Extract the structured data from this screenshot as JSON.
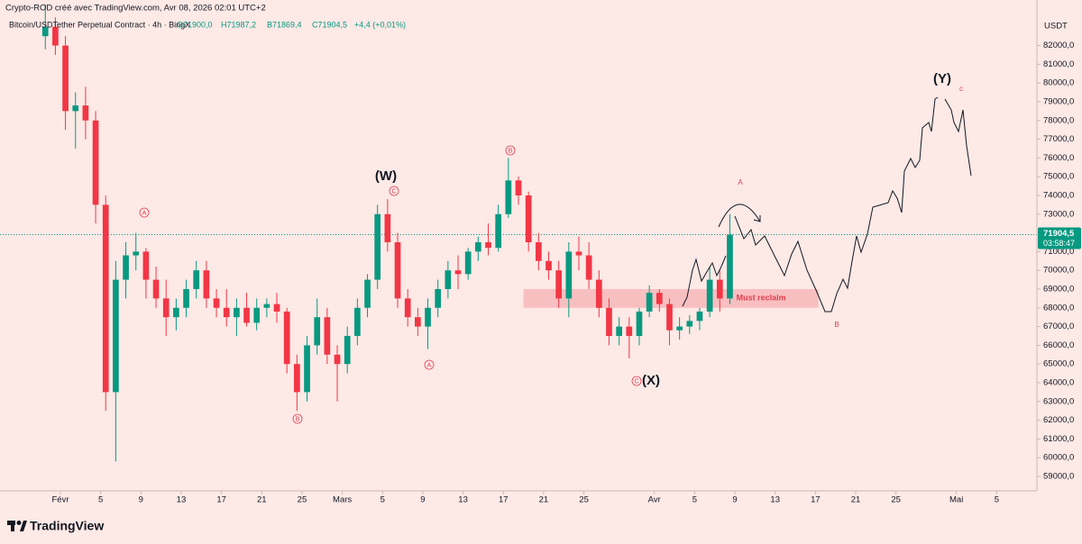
{
  "header": {
    "attribution": "Crypto-ROD créé avec TradingView.com, Avr 08, 2026 02:01 UTC+2",
    "symbol": "Bitcoin/USDTether Perpetual Contract · 4h · BingX",
    "ohlc": [
      "O71900,0",
      "H71987,2",
      "B71869,4",
      "C71904,5",
      "+4,4 (+0,01%)"
    ]
  },
  "footer": {
    "brand": "TradingView"
  },
  "chart_data": {
    "type": "candlestick",
    "currency": "USDT",
    "x": [
      "2026-01-30",
      "2026-01-31",
      "2026-02-01",
      "2026-02-02",
      "2026-02-03",
      "2026-02-04",
      "2026-02-05",
      "2026-02-06",
      "2026-02-07",
      "2026-02-08",
      "2026-02-09",
      "2026-02-10",
      "2026-02-11",
      "2026-02-12",
      "2026-02-13",
      "2026-02-14",
      "2026-02-15",
      "2026-02-16",
      "2026-02-17",
      "2026-02-18",
      "2026-02-19",
      "2026-02-20",
      "2026-02-21",
      "2026-02-22",
      "2026-02-23",
      "2026-02-24",
      "2026-02-25",
      "2026-02-26",
      "2026-02-27",
      "2026-02-28",
      "2026-03-01",
      "2026-03-02",
      "2026-03-03",
      "2026-03-04",
      "2026-03-05",
      "2026-03-06",
      "2026-03-07",
      "2026-03-08",
      "2026-03-09",
      "2026-03-10",
      "2026-03-11",
      "2026-03-12",
      "2026-03-13",
      "2026-03-14",
      "2026-03-15",
      "2026-03-16",
      "2026-03-17",
      "2026-03-18",
      "2026-03-19",
      "2026-03-20",
      "2026-03-21",
      "2026-03-22",
      "2026-03-23",
      "2026-03-24",
      "2026-03-25",
      "2026-03-26",
      "2026-03-27",
      "2026-03-28",
      "2026-03-29",
      "2026-03-30",
      "2026-03-31",
      "2026-04-01",
      "2026-04-02",
      "2026-04-03",
      "2026-04-04",
      "2026-04-05",
      "2026-04-06",
      "2026-04-07",
      "2026-04-08"
    ],
    "open": [
      82500,
      83000,
      82000,
      78500,
      78800,
      78000,
      73500,
      63500,
      69500,
      70800,
      71000,
      69500,
      68500,
      67500,
      68000,
      69000,
      70000,
      68500,
      68000,
      67500,
      68000,
      67200,
      68000,
      68200,
      67800,
      65000,
      63500,
      66000,
      67500,
      65500,
      65000,
      66500,
      68000,
      69500,
      73000,
      71500,
      68500,
      67500,
      67000,
      68000,
      69000,
      70000,
      69800,
      71000,
      71500,
      71200,
      73000,
      74800,
      74000,
      71500,
      70500,
      70000,
      68500,
      71000,
      70800,
      69500,
      68000,
      66500,
      67000,
      66500,
      67800,
      68800,
      68200,
      66800,
      67000,
      67300,
      67800,
      69500,
      68500
    ],
    "high": [
      84200,
      83500,
      82500,
      79500,
      79800,
      78500,
      74000,
      70500,
      71500,
      72000,
      71200,
      70200,
      69500,
      68500,
      69500,
      70500,
      70500,
      69000,
      69000,
      68500,
      68800,
      68500,
      68500,
      68800,
      68000,
      65500,
      66500,
      68500,
      68000,
      66000,
      67000,
      68500,
      69800,
      73500,
      73800,
      72000,
      69000,
      68000,
      68500,
      69500,
      70500,
      70800,
      71200,
      71800,
      72500,
      73500,
      76000,
      75000,
      74200,
      72000,
      71000,
      70500,
      71500,
      71800,
      71500,
      70000,
      68500,
      67500,
      67500,
      68000,
      69200,
      69000,
      68500,
      67500,
      67600,
      68000,
      70200,
      70000,
      73000
    ],
    "low": [
      81800,
      81500,
      77500,
      76500,
      77000,
      72500,
      62500,
      59800,
      68500,
      70000,
      68500,
      68000,
      66500,
      66800,
      67500,
      68500,
      68000,
      67500,
      67000,
      66500,
      67000,
      66800,
      67500,
      67200,
      64500,
      62500,
      63000,
      65500,
      65000,
      63000,
      64500,
      66000,
      67500,
      69000,
      71000,
      68000,
      67000,
      66500,
      65800,
      67500,
      68500,
      69000,
      69500,
      70500,
      70800,
      71000,
      72800,
      73500,
      71000,
      70000,
      69500,
      68000,
      67500,
      70000,
      69000,
      67500,
      66000,
      66000,
      65300,
      66000,
      67500,
      67800,
      66000,
      66300,
      66600,
      66800,
      67500,
      67800,
      68200
    ],
    "close": [
      83000,
      82000,
      78500,
      78800,
      78000,
      73500,
      63500,
      69500,
      70800,
      71000,
      69500,
      68500,
      67500,
      68000,
      69000,
      70000,
      68500,
      68000,
      67500,
      68000,
      67200,
      68000,
      68200,
      67800,
      65000,
      63500,
      66000,
      67500,
      65500,
      65000,
      66500,
      68000,
      69500,
      73000,
      71500,
      68500,
      67500,
      67000,
      68000,
      69000,
      70000,
      69800,
      71000,
      71500,
      71200,
      73000,
      74800,
      74000,
      71500,
      70500,
      70000,
      68500,
      71000,
      70800,
      69500,
      68000,
      66500,
      67000,
      66500,
      67800,
      68800,
      68200,
      66800,
      67000,
      67300,
      67800,
      69500,
      68500,
      71904.5
    ],
    "up_color": "#089981",
    "down_color": "#f23645",
    "xlim": [
      "2026-01-26",
      "2026-05-09"
    ],
    "xticks": [
      {
        "value": "2026-02-01",
        "label": "Févr"
      },
      {
        "value": "2026-02-05",
        "label": "5"
      },
      {
        "value": "2026-02-09",
        "label": "9"
      },
      {
        "value": "2026-02-13",
        "label": "13"
      },
      {
        "value": "2026-02-17",
        "label": "17"
      },
      {
        "value": "2026-02-21",
        "label": "21"
      },
      {
        "value": "2026-02-25",
        "label": "25"
      },
      {
        "value": "2026-03-01",
        "label": "Mars"
      },
      {
        "value": "2026-03-05",
        "label": "5"
      },
      {
        "value": "2026-03-09",
        "label": "9"
      },
      {
        "value": "2026-03-13",
        "label": "13"
      },
      {
        "value": "2026-03-17",
        "label": "17"
      },
      {
        "value": "2026-03-21",
        "label": "21"
      },
      {
        "value": "2026-03-25",
        "label": "25"
      },
      {
        "value": "2026-04-01",
        "label": "Avr"
      },
      {
        "value": "2026-04-05",
        "label": "5"
      },
      {
        "value": "2026-04-09",
        "label": "9"
      },
      {
        "value": "2026-04-13",
        "label": "13"
      },
      {
        "value": "2026-04-17",
        "label": "17"
      },
      {
        "value": "2026-04-21",
        "label": "21"
      },
      {
        "value": "2026-04-25",
        "label": "25"
      },
      {
        "value": "2026-05-01",
        "label": "Mai"
      },
      {
        "value": "2026-05-05",
        "label": "5"
      }
    ],
    "ylim": [
      58230,
      84430
    ],
    "yticks": [
      {
        "value": 59000,
        "label": "59000,0"
      },
      {
        "value": 60000,
        "label": "60000,0"
      },
      {
        "value": 61000,
        "label": "61000,0"
      },
      {
        "value": 62000,
        "label": "62000,0"
      },
      {
        "value": 63000,
        "label": "63000,0"
      },
      {
        "value": 64000,
        "label": "64000,0"
      },
      {
        "value": 65000,
        "label": "65000,0"
      },
      {
        "value": 66000,
        "label": "66000,0"
      },
      {
        "value": 67000,
        "label": "67000,0"
      },
      {
        "value": 68000,
        "label": "68000,0"
      },
      {
        "value": 69000,
        "label": "69000,0"
      },
      {
        "value": 70000,
        "label": "70000,0"
      },
      {
        "value": 71000,
        "label": "71000,0"
      },
      {
        "value": 73000,
        "label": "73000,0"
      },
      {
        "value": 74000,
        "label": "74000,0"
      },
      {
        "value": 75000,
        "label": "75000,0"
      },
      {
        "value": 76000,
        "label": "76000,0"
      },
      {
        "value": 77000,
        "label": "77000,0"
      },
      {
        "value": 78000,
        "label": "78000,0"
      },
      {
        "value": 79000,
        "label": "79000,0"
      },
      {
        "value": 80000,
        "label": "80000,0"
      },
      {
        "value": 81000,
        "label": "81000,0"
      },
      {
        "value": 82000,
        "label": "82000,0"
      }
    ],
    "last_price": {
      "value": 71904.5,
      "label": "71904,5",
      "countdown": "03:58:47",
      "color": "#089981"
    },
    "zone": {
      "label": "Must reclaim",
      "range": [
        68000,
        69000
      ]
    },
    "annotations": [
      "(W)",
      "(X)",
      "(Y)",
      "A",
      "B",
      "C",
      "A",
      "B",
      "C",
      "A",
      "B",
      "c"
    ]
  }
}
